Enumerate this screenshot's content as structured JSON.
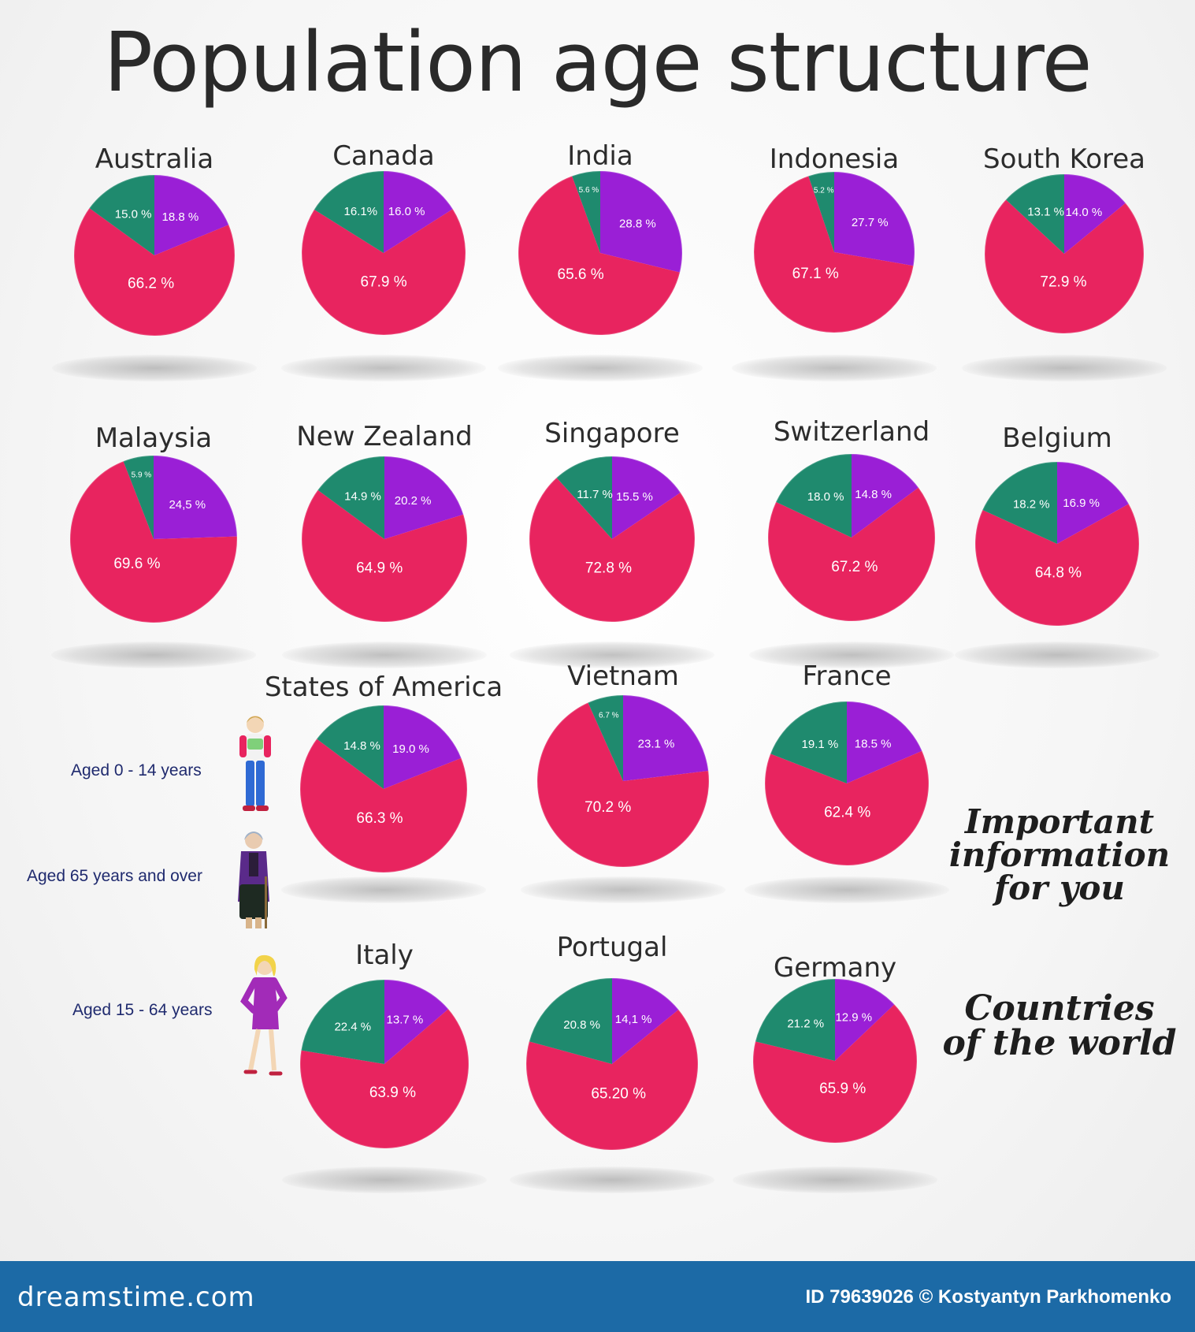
{
  "title": "Population age structure",
  "colors": {
    "aged_0_14": "#9a1fd6",
    "aged_65_over": "#1f8a6e",
    "aged_15_64": "#e8245f",
    "footer": "#1c6aa6"
  },
  "legend": [
    {
      "label": "Aged 0 - 14 years",
      "figure": "child-icon"
    },
    {
      "label": "Aged  65 years and over",
      "figure": "elderly-woman-icon"
    },
    {
      "label": "Aged 15 - 64  years",
      "figure": "woman-icon"
    }
  ],
  "side_text": {
    "important": [
      "Important",
      "information",
      "for you"
    ],
    "countries": [
      "Countries",
      "of the world"
    ]
  },
  "footer": {
    "brand": "dreamstime.com",
    "credit": "ID 79639026 © Kostyantyn Parkhomenko"
  },
  "chart_data": {
    "type": "pie",
    "title": "Population age structure",
    "slice_order": [
      "Aged 0 - 14 years",
      "Aged 15 - 64  years",
      "Aged  65 years and over"
    ],
    "countries": [
      {
        "name": "Australia",
        "aged_0_14": 18.8,
        "aged_15_64": 66.2,
        "aged_65_over": 15.0,
        "labels": [
          "18.8 %",
          "66.2 %",
          "15.0 %"
        ]
      },
      {
        "name": "Canada",
        "aged_0_14": 16.0,
        "aged_15_64": 67.9,
        "aged_65_over": 16.1,
        "labels": [
          "16.0 %",
          "67.9 %",
          "16.1%"
        ]
      },
      {
        "name": "India",
        "aged_0_14": 28.8,
        "aged_15_64": 65.6,
        "aged_65_over": 5.6,
        "labels": [
          "28.8 %",
          "65.6 %",
          "5.6 %"
        ]
      },
      {
        "name": "Indonesia",
        "aged_0_14": 27.7,
        "aged_15_64": 67.1,
        "aged_65_over": 5.2,
        "labels": [
          "27.7 %",
          "67.1 %",
          "5.2 %"
        ]
      },
      {
        "name": "South Korea",
        "aged_0_14": 14.0,
        "aged_15_64": 72.9,
        "aged_65_over": 13.1,
        "labels": [
          "14.0 %",
          "72.9 %",
          "13.1 %"
        ]
      },
      {
        "name": "Malaysia",
        "aged_0_14": 24.5,
        "aged_15_64": 69.6,
        "aged_65_over": 5.9,
        "labels": [
          "24,5 %",
          "69.6 %",
          "5.9 %"
        ]
      },
      {
        "name": "New Zealand",
        "aged_0_14": 20.2,
        "aged_15_64": 64.9,
        "aged_65_over": 14.9,
        "labels": [
          "20.2 %",
          "64.9 %",
          "14.9 %"
        ]
      },
      {
        "name": "Singapore",
        "aged_0_14": 15.5,
        "aged_15_64": 72.8,
        "aged_65_over": 11.7,
        "labels": [
          "15.5 %",
          "72.8 %",
          "11.7 %"
        ]
      },
      {
        "name": "Switzerland",
        "aged_0_14": 14.8,
        "aged_15_64": 67.2,
        "aged_65_over": 18.0,
        "labels": [
          "14.8 %",
          "67.2 %",
          "18.0 %"
        ]
      },
      {
        "name": "Belgium",
        "aged_0_14": 16.9,
        "aged_15_64": 64.8,
        "aged_65_over": 18.2,
        "labels": [
          "16.9 %",
          "64.8 %",
          "18.2 %"
        ]
      },
      {
        "name": "States of America",
        "aged_0_14": 19.0,
        "aged_15_64": 66.3,
        "aged_65_over": 14.8,
        "labels": [
          "19.0 %",
          "66.3 %",
          "14.8 %"
        ]
      },
      {
        "name": "Vietnam",
        "aged_0_14": 23.1,
        "aged_15_64": 70.2,
        "aged_65_over": 6.7,
        "labels": [
          "23.1 %",
          "70.2 %",
          "6.7 %"
        ]
      },
      {
        "name": "France",
        "aged_0_14": 18.5,
        "aged_15_64": 62.4,
        "aged_65_over": 19.1,
        "labels": [
          "18.5 %",
          "62.4 %",
          "19.1 %"
        ]
      },
      {
        "name": "Italy",
        "aged_0_14": 13.7,
        "aged_15_64": 63.9,
        "aged_65_over": 22.4,
        "labels": [
          "13.7 %",
          "63.9 %",
          "22.4 %"
        ]
      },
      {
        "name": "Portugal",
        "aged_0_14": 14.1,
        "aged_15_64": 65.2,
        "aged_65_over": 20.8,
        "labels": [
          "14,1 %",
          "65.20 %",
          "20.8 %"
        ]
      },
      {
        "name": "Germany",
        "aged_0_14": 12.9,
        "aged_15_64": 65.9,
        "aged_65_over": 21.2,
        "labels": [
          "12.9 %",
          "65.9 %",
          "21.2 %"
        ]
      }
    ]
  }
}
